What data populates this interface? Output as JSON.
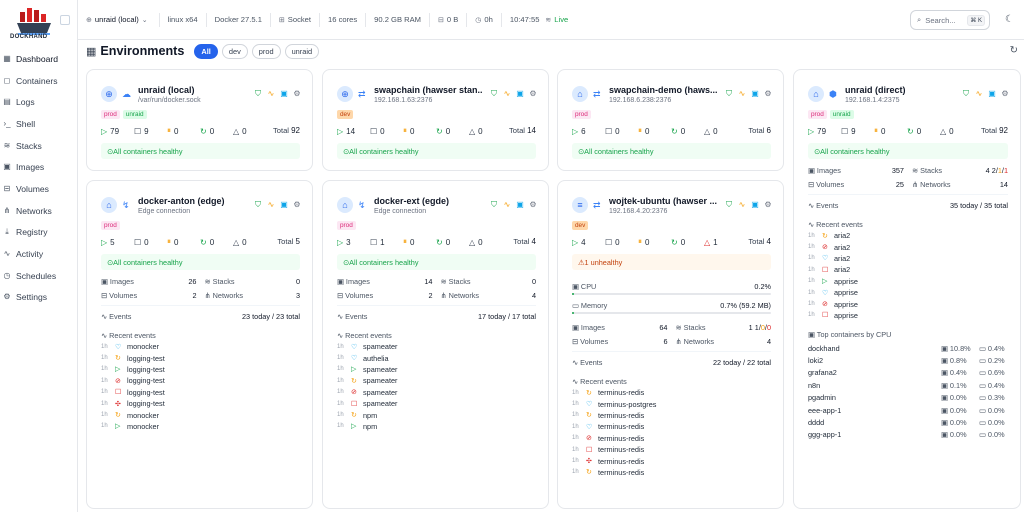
{
  "app": {
    "logo_text": "DOCKHAND"
  },
  "sidebar": {
    "items": [
      {
        "label": "Dashboard",
        "icon": "grid-icon",
        "glyph": "▦"
      },
      {
        "label": "Containers",
        "icon": "box-icon",
        "glyph": "◻"
      },
      {
        "label": "Logs",
        "icon": "file-icon",
        "glyph": "▤"
      },
      {
        "label": "Shell",
        "icon": "terminal-icon",
        "glyph": "›_"
      },
      {
        "label": "Stacks",
        "icon": "layers-icon",
        "glyph": "≋"
      },
      {
        "label": "Images",
        "icon": "image-icon",
        "glyph": "▣"
      },
      {
        "label": "Volumes",
        "icon": "disk-icon",
        "glyph": "⊟"
      },
      {
        "label": "Networks",
        "icon": "network-icon",
        "glyph": "⋔"
      },
      {
        "label": "Registry",
        "icon": "download-icon",
        "glyph": "⤓"
      },
      {
        "label": "Activity",
        "icon": "activity-icon",
        "glyph": "∿"
      },
      {
        "label": "Schedules",
        "icon": "clock-icon",
        "glyph": "◷"
      },
      {
        "label": "Settings",
        "icon": "gear-icon",
        "glyph": "⚙"
      }
    ]
  },
  "topbar": {
    "host": "unraid (local)",
    "os": "linux x64",
    "docker": "Docker 27.5.1",
    "conn": "Socket",
    "cores": "16 cores",
    "ram": "90.2 GB RAM",
    "disk": "0 B",
    "uptime": "0h",
    "time": "10:47:55",
    "status": "Live",
    "search_placeholder": "Search...",
    "search_kbd": "⌘ K"
  },
  "page": {
    "title": "Environments",
    "filters": [
      "All",
      "dev",
      "prod",
      "unraid"
    ]
  },
  "cards": [
    {
      "name": "unraid (local)",
      "sub": "/var/run/docker.sock",
      "tags": [
        [
          "prod",
          "p"
        ],
        [
          "unraid",
          "g"
        ]
      ],
      "stats": [
        "79",
        "9",
        "0",
        "0",
        "0"
      ],
      "total_label": "Total",
      "total": "92",
      "health": "All containers healthy"
    },
    {
      "name": "swapchain (hawser stan...",
      "sub": "192.168.1.63:2376",
      "tags": [
        [
          "dev",
          "o"
        ]
      ],
      "stats": [
        "14",
        "0",
        "0",
        "0",
        "0"
      ],
      "total_label": "Total",
      "total": "14",
      "health": "All containers healthy"
    },
    {
      "name": "swapchain-demo (haws...",
      "sub": "192.168.6.238:2376",
      "tags": [
        [
          "prod",
          "p"
        ]
      ],
      "stats": [
        "6",
        "0",
        "0",
        "0",
        "0"
      ],
      "total_label": "Total",
      "total": "6",
      "health": "All containers healthy"
    },
    {
      "name": "unraid (direct)",
      "sub": "192.168.1.4:2375",
      "tags": [
        [
          "prod",
          "p"
        ],
        [
          "unraid",
          "g"
        ]
      ],
      "stats": [
        "79",
        "9",
        "0",
        "0",
        "0"
      ],
      "total_label": "Total",
      "total": "92",
      "health": "All containers healthy",
      "images_label": "Images",
      "images": "357",
      "stacks_label": "Stacks",
      "stacks": [
        "4",
        "2",
        "1",
        "1"
      ],
      "volumes_label": "Volumes",
      "volumes": "25",
      "networks_label": "Networks",
      "networks": "14",
      "events_label": "Events",
      "events": "35 today / 35 total",
      "recent_label": "Recent events",
      "recent": [
        [
          "1h",
          "aria2",
          "rest"
        ],
        [
          "1h",
          "aria2",
          "stop"
        ],
        [
          "1h",
          "aria2",
          "heart"
        ],
        [
          "1h",
          "aria2",
          "box"
        ],
        [
          "1h",
          "apprise",
          "run"
        ],
        [
          "1h",
          "apprise",
          "heart"
        ],
        [
          "1h",
          "apprise",
          "stop"
        ],
        [
          "1h",
          "apprise",
          "box"
        ]
      ],
      "top_label": "Top containers by CPU",
      "top": [
        [
          "dockhand",
          "10.8%",
          "0.4%"
        ],
        [
          "loki2",
          "0.8%",
          "0.2%"
        ],
        [
          "grafana2",
          "0.4%",
          "0.6%"
        ],
        [
          "n8n",
          "0.1%",
          "0.4%"
        ],
        [
          "pgadmin",
          "0.0%",
          "0.3%"
        ],
        [
          "eee-app-1",
          "0.0%",
          "0.0%"
        ],
        [
          "dddd",
          "0.0%",
          "0.0%"
        ],
        [
          "ggg-app-1",
          "0.0%",
          "0.0%"
        ]
      ]
    },
    {
      "name": "docker-anton (edge)",
      "sub": "Edge connection",
      "tags": [
        [
          "prod",
          "p"
        ]
      ],
      "stats": [
        "5",
        "0",
        "0",
        "0",
        "0"
      ],
      "total_label": "Total",
      "total": "5",
      "health": "All containers healthy",
      "images_label": "Images",
      "images": "26",
      "stacks_label": "Stacks",
      "stacks": [
        "0"
      ],
      "volumes_label": "Volumes",
      "volumes": "2",
      "networks_label": "Networks",
      "networks": "3",
      "events_label": "Events",
      "events": "23 today / 23 total",
      "recent_label": "Recent events",
      "recent": [
        [
          "1h",
          "monocker",
          "heart"
        ],
        [
          "1h",
          "logging-test",
          "rest"
        ],
        [
          "1h",
          "logging-test",
          "run"
        ],
        [
          "1h",
          "logging-test",
          "stop"
        ],
        [
          "1h",
          "logging-test",
          "box"
        ],
        [
          "1h",
          "logging-test",
          "kill"
        ],
        [
          "1h",
          "monocker",
          "rest"
        ],
        [
          "1h",
          "monocker",
          "run"
        ]
      ]
    },
    {
      "name": "docker-ext (egde)",
      "sub": "Edge connection",
      "tags": [
        [
          "prod",
          "p"
        ]
      ],
      "stats": [
        "3",
        "1",
        "0",
        "0",
        "0"
      ],
      "total_label": "Total",
      "total": "4",
      "health": "All containers healthy",
      "images_label": "Images",
      "images": "14",
      "stacks_label": "Stacks",
      "stacks": [
        "0"
      ],
      "volumes_label": "Volumes",
      "volumes": "2",
      "networks_label": "Networks",
      "networks": "4",
      "events_label": "Events",
      "events": "17 today / 17 total",
      "recent_label": "Recent events",
      "recent": [
        [
          "1h",
          "spameater",
          "heart"
        ],
        [
          "1h",
          "authelia",
          "heart"
        ],
        [
          "1h",
          "spameater",
          "run"
        ],
        [
          "1h",
          "spameater",
          "rest"
        ],
        [
          "1h",
          "spameater",
          "stop"
        ],
        [
          "1h",
          "spameater",
          "box"
        ],
        [
          "1h",
          "npm",
          "rest"
        ],
        [
          "1h",
          "npm",
          "run"
        ]
      ]
    },
    {
      "name": "wojtek-ubuntu (hawser ...",
      "sub": "192.168.4.20:2376",
      "tags": [
        [
          "dev",
          "o"
        ]
      ],
      "stats": [
        "4",
        "0",
        "0",
        "0",
        "1"
      ],
      "total_label": "Total",
      "total": "4",
      "health": "1 unhealthy",
      "cpu_label": "CPU",
      "cpu": "0.2%",
      "cpu_pct": 0.2,
      "mem_label": "Memory",
      "mem": "0.7% (59.2 MB)",
      "mem_pct": 0.7,
      "images_label": "Images",
      "images": "64",
      "stacks_label": "Stacks",
      "stacks": [
        "1",
        "1",
        "0",
        "0"
      ],
      "volumes_label": "Volumes",
      "volumes": "6",
      "networks_label": "Networks",
      "networks": "4",
      "events_label": "Events",
      "events": "22 today / 22 total",
      "recent_label": "Recent events",
      "recent": [
        [
          "1h",
          "terminus-redis",
          "rest"
        ],
        [
          "1h",
          "terminus-postgres",
          "heart"
        ],
        [
          "1h",
          "terminus-redis",
          "rest"
        ],
        [
          "1h",
          "terminus-redis",
          "heart"
        ],
        [
          "1h",
          "terminus-redis",
          "stop"
        ],
        [
          "1h",
          "terminus-redis",
          "box"
        ],
        [
          "1h",
          "terminus-redis",
          "kill"
        ],
        [
          "1h",
          "terminus-redis",
          "rest"
        ]
      ]
    }
  ],
  "colors": {
    "accent": "#2563eb",
    "ok": "#16a34a",
    "warn": "#f59e0b",
    "danger": "#dc2626"
  }
}
